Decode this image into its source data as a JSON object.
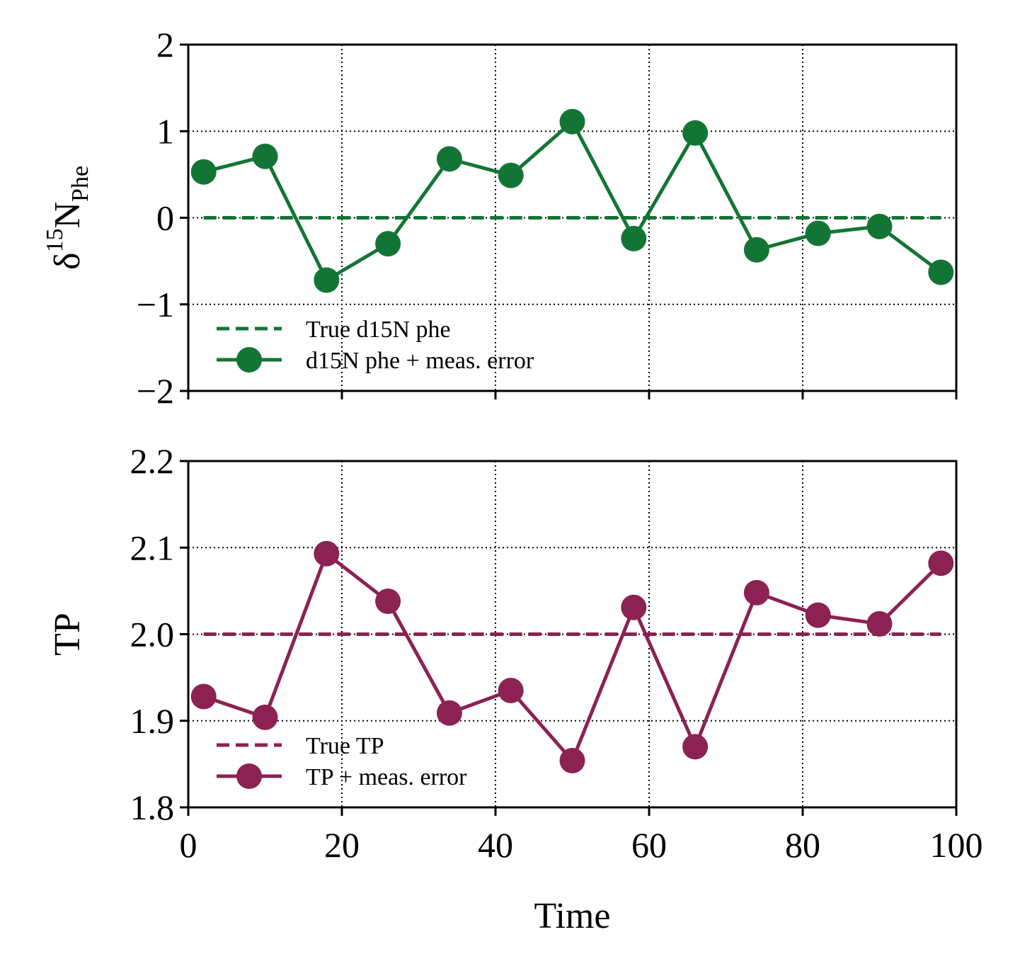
{
  "chart_data": [
    {
      "type": "line",
      "ylabel": {
        "main": "δ",
        "sup": "15",
        "base": "N",
        "sub": "Phe"
      },
      "xlabel": "",
      "xlim": [
        0,
        100
      ],
      "ylim": [
        -2,
        2
      ],
      "xticks": [
        0,
        20,
        40,
        60,
        80,
        100
      ],
      "xtick_labels_visible": false,
      "yticks": [
        -2,
        -1,
        0,
        1,
        2
      ],
      "ytick_labels": [
        "−2",
        "−1",
        "0",
        "1",
        "2"
      ],
      "grid": true,
      "legend_position": "lower-left",
      "color": "#137535",
      "x": [
        2,
        10,
        18,
        26,
        34,
        42,
        50,
        58,
        66,
        74,
        82,
        90,
        98
      ],
      "series": [
        {
          "name": "True d15N phe",
          "style": "dashed",
          "values": [
            0,
            0,
            0,
            0,
            0,
            0,
            0,
            0,
            0,
            0,
            0,
            0,
            0
          ]
        },
        {
          "name": "d15N phe + meas. error",
          "style": "solid-markers",
          "values": [
            0.53,
            0.71,
            -0.72,
            -0.3,
            0.68,
            0.49,
            1.11,
            -0.24,
            0.98,
            -0.37,
            -0.18,
            -0.1,
            -0.63
          ]
        }
      ]
    },
    {
      "type": "line",
      "ylabel": {
        "main": "TP"
      },
      "xlabel": "Time",
      "xlim": [
        0,
        100
      ],
      "ylim": [
        1.8,
        2.2
      ],
      "xticks": [
        0,
        20,
        40,
        60,
        80,
        100
      ],
      "xtick_labels": [
        "0",
        "20",
        "40",
        "60",
        "80",
        "100"
      ],
      "yticks": [
        1.8,
        1.9,
        2.0,
        2.1,
        2.2
      ],
      "ytick_labels": [
        "1.8",
        "1.9",
        "2.0",
        "2.1",
        "2.2"
      ],
      "grid": true,
      "legend_position": "lower-left",
      "color": "#8b2253",
      "x": [
        2,
        10,
        18,
        26,
        34,
        42,
        50,
        58,
        66,
        74,
        82,
        90,
        98
      ],
      "series": [
        {
          "name": "True TP",
          "style": "dashed",
          "values": [
            2.0,
            2.0,
            2.0,
            2.0,
            2.0,
            2.0,
            2.0,
            2.0,
            2.0,
            2.0,
            2.0,
            2.0,
            2.0
          ]
        },
        {
          "name": "TP + meas. error",
          "style": "solid-markers",
          "values": [
            1.928,
            1.904,
            2.093,
            2.038,
            1.909,
            1.935,
            1.854,
            2.031,
            1.87,
            2.048,
            2.022,
            2.012,
            2.082
          ]
        }
      ]
    }
  ]
}
